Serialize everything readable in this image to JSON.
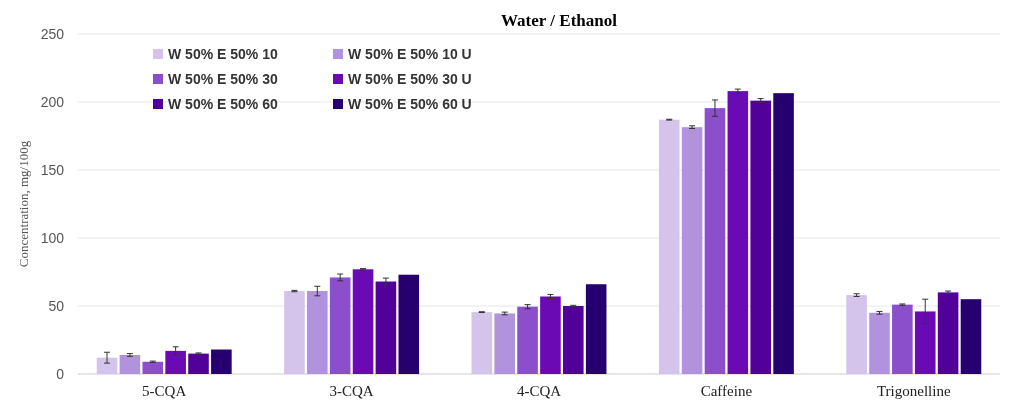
{
  "chart_data": {
    "type": "bar",
    "title": "Water / Ethanol",
    "ylabel": "Concentration, mg/100g",
    "categories": [
      "5-CQA",
      "3-CQA",
      "4-CQA",
      "Caffeine",
      "Trigonelline"
    ],
    "series": [
      {
        "name": "W 50% E 50% 10",
        "color": "#d4c3ea",
        "values": [
          12,
          61,
          45.5,
          187,
          58
        ],
        "errors": [
          4,
          0.5,
          0.3,
          0.3,
          1
        ]
      },
      {
        "name": "W 50% E 50% 10 U",
        "color": "#b093dc",
        "values": [
          14,
          61,
          44.5,
          181.5,
          45
        ],
        "errors": [
          1,
          3.5,
          1,
          1,
          1
        ]
      },
      {
        "name": "W 50% E 50% 30",
        "color": "#8b4fcb",
        "values": [
          9,
          71,
          49.5,
          195.5,
          51
        ],
        "errors": [
          0.5,
          2.5,
          1.5,
          6,
          0.5
        ]
      },
      {
        "name": "W 50% E 50% 30 U",
        "color": "#6a0ab5",
        "values": [
          17,
          77,
          57,
          208,
          46
        ],
        "errors": [
          3,
          0.5,
          1.5,
          1.5,
          9
        ]
      },
      {
        "name": "W 50% E 50% 60",
        "color": "#52009a",
        "values": [
          15,
          68,
          50,
          201,
          60
        ],
        "errors": [
          0.5,
          2.5,
          0.5,
          1.5,
          1
        ]
      },
      {
        "name": "W 50% E 50% 60 U",
        "color": "#26006e",
        "values": [
          18,
          73,
          66,
          206.5,
          55
        ]
      }
    ],
    "ylim": [
      0,
      250
    ],
    "yticks": [
      0,
      50,
      100,
      150,
      200,
      250
    ],
    "grid": "y",
    "legend": "top left"
  }
}
